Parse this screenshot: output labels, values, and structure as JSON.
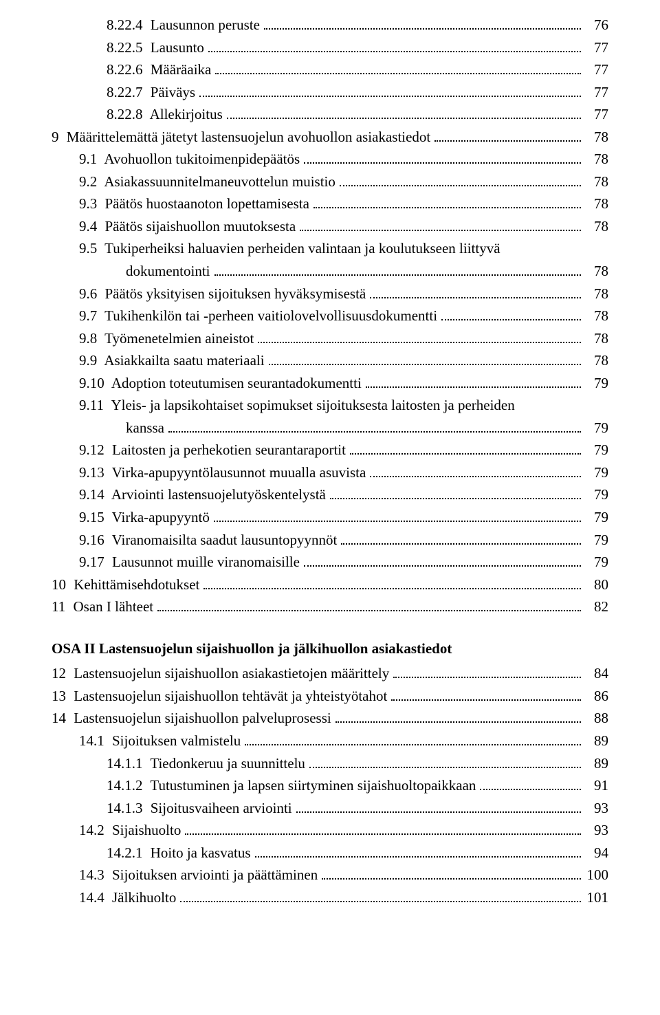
{
  "typography": {
    "font_family": "Times New Roman",
    "font_size_pt": 16,
    "line_height": 1.55,
    "text_color": "#000000",
    "background_color": "#ffffff",
    "dot_leader_color": "#000000"
  },
  "toc": [
    {
      "indent": 2,
      "number": "8.22.4",
      "title": "Lausunnon peruste",
      "page": "76"
    },
    {
      "indent": 2,
      "number": "8.22.5",
      "title": "Lausunto",
      "page": "77"
    },
    {
      "indent": 2,
      "number": "8.22.6",
      "title": "Määräaika",
      "page": "77"
    },
    {
      "indent": 2,
      "number": "8.22.7",
      "title": "Päiväys",
      "page": "77"
    },
    {
      "indent": 2,
      "number": "8.22.8",
      "title": "Allekirjoitus",
      "page": "77"
    },
    {
      "indent": 0,
      "number": "9",
      "title": "Määrittelemättä jätetyt lastensuojelun avohuollon asiakastiedot",
      "page": "78"
    },
    {
      "indent": 1,
      "number": "9.1",
      "title": "Avohuollon tukitoimenpidepäätös",
      "page": "78"
    },
    {
      "indent": 1,
      "number": "9.2",
      "title": "Asiakassuunnitelmaneuvottelun muistio",
      "page": "78"
    },
    {
      "indent": 1,
      "number": "9.3",
      "title": "Päätös huostaanoton lopettamisesta",
      "page": "78"
    },
    {
      "indent": 1,
      "number": "9.4",
      "title": "Päätös sijaishuollon muutoksesta",
      "page": "78"
    },
    {
      "indent": 1,
      "number": "9.5",
      "title": "Tukiperheiksi haluavien perheiden valintaan ja koulutukseen liittyvä",
      "continuation": "dokumentointi",
      "page": "78"
    },
    {
      "indent": 1,
      "number": "9.6",
      "title": "Päätös yksityisen sijoituksen hyväksymisestä",
      "page": "78"
    },
    {
      "indent": 1,
      "number": "9.7",
      "title": "Tukihenkilön tai -perheen vaitiolovelvollisuusdokumentti",
      "page": "78"
    },
    {
      "indent": 1,
      "number": "9.8",
      "title": "Työmenetelmien aineistot",
      "page": "78"
    },
    {
      "indent": 1,
      "number": "9.9",
      "title": "Asiakkailta saatu materiaali",
      "page": "78"
    },
    {
      "indent": 1,
      "number": "9.10",
      "title": "Adoption toteutumisen seurantadokumentti",
      "page": "79"
    },
    {
      "indent": 1,
      "number": "9.11",
      "title": "Yleis- ja lapsikohtaiset sopimukset sijoituksesta laitosten ja perheiden",
      "continuation": "kanssa",
      "page": "79"
    },
    {
      "indent": 1,
      "number": "9.12",
      "title": "Laitosten ja perhekotien seurantaraportit",
      "page": "79"
    },
    {
      "indent": 1,
      "number": "9.13",
      "title": "Virka-apupyyntölausunnot muualla asuvista",
      "page": "79"
    },
    {
      "indent": 1,
      "number": "9.14",
      "title": "Arviointi lastensuojelutyöskentelystä",
      "page": "79"
    },
    {
      "indent": 1,
      "number": "9.15",
      "title": "Virka-apupyyntö",
      "page": "79"
    },
    {
      "indent": 1,
      "number": "9.16",
      "title": "Viranomaisilta saadut lausuntopyynnöt",
      "page": "79"
    },
    {
      "indent": 1,
      "number": "9.17",
      "title": "Lausunnot muille viranomaisille",
      "page": "79"
    },
    {
      "indent": 0,
      "number": "10",
      "title": "Kehittämisehdotukset",
      "page": "80"
    },
    {
      "indent": 0,
      "number": "11",
      "title": "Osan I lähteet",
      "page": "82"
    }
  ],
  "part_heading": "OSA II  Lastensuojelun sijaishuollon ja jälkihuollon asiakastiedot",
  "toc2": [
    {
      "indent": 0,
      "number": "12",
      "title": "Lastensuojelun sijaishuollon  asiakastietojen määrittely",
      "page": "84"
    },
    {
      "indent": 0,
      "number": "13",
      "title": "Lastensuojelun sijaishuollon  tehtävät ja yhteistyötahot",
      "page": "86"
    },
    {
      "indent": 0,
      "number": "14",
      "title": "Lastensuojelun sijaishuollon  palveluprosessi",
      "page": "88"
    },
    {
      "indent": 1,
      "number": "14.1",
      "title": "Sijoituksen valmistelu",
      "page": "89"
    },
    {
      "indent": 2,
      "number": "14.1.1",
      "title": "Tiedonkeruu ja suunnittelu",
      "page": "89"
    },
    {
      "indent": 2,
      "number": "14.1.2",
      "title": "Tutustuminen ja lapsen siirtyminen sijaishuoltopaikkaan",
      "page": "91"
    },
    {
      "indent": 2,
      "number": "14.1.3",
      "title": "Sijoitusvaiheen arviointi",
      "page": "93"
    },
    {
      "indent": 1,
      "number": "14.2",
      "title": "Sijaishuolto",
      "page": "93"
    },
    {
      "indent": 2,
      "number": "14.2.1",
      "title": "Hoito ja kasvatus",
      "page": "94"
    },
    {
      "indent": 1,
      "number": "14.3",
      "title": "Sijoituksen arviointi ja päättäminen",
      "page": "100"
    },
    {
      "indent": 1,
      "number": "14.4",
      "title": "Jälkihuolto",
      "page": "101"
    }
  ]
}
